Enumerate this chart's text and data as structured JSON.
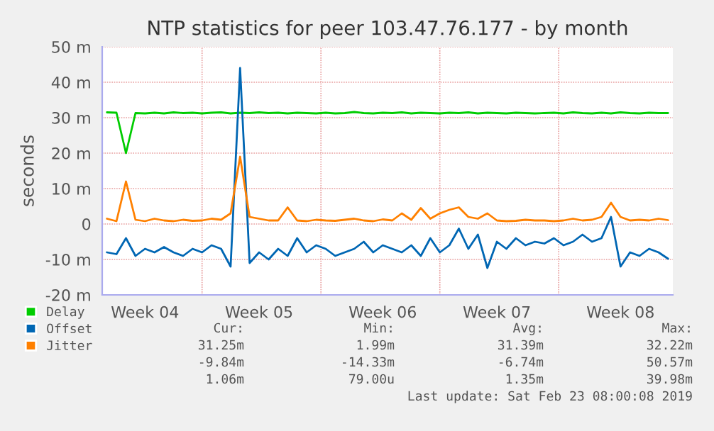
{
  "chart_data": {
    "type": "line",
    "title": "NTP statistics for peer 103.47.76.177 - by month",
    "ylabel": "seconds",
    "categories": [
      null,
      null,
      null,
      null,
      "Week 04",
      null,
      null,
      null,
      null,
      null,
      null,
      null,
      null,
      null,
      null,
      null,
      "Week 05",
      null,
      null,
      null,
      null,
      null,
      null,
      null,
      null,
      null,
      null,
      null,
      null,
      "Week 06",
      null,
      null,
      null,
      null,
      null,
      null,
      null,
      null,
      null,
      null,
      null,
      "Week 07",
      null,
      null,
      null,
      null,
      null,
      null,
      null,
      null,
      null,
      null,
      null,
      null,
      "Week 08",
      null,
      null,
      null,
      null,
      null
    ],
    "series": [
      {
        "name": "Delay",
        "color": "#00cc00",
        "values": [
          31.5,
          31.4,
          20,
          31.3,
          31.2,
          31.4,
          31.2,
          31.5,
          31.3,
          31.4,
          31.2,
          31.4,
          31.5,
          31.2,
          31.4,
          31.3,
          31.5,
          31.3,
          31.4,
          31.2,
          31.4,
          31.3,
          31.2,
          31.4,
          31.2,
          31.3,
          31.6,
          31.3,
          31.2,
          31.4,
          31.3,
          31.5,
          31.2,
          31.4,
          31.3,
          31.2,
          31.4,
          31.3,
          31.5,
          31.2,
          31.4,
          31.3,
          31.2,
          31.4,
          31.3,
          31.2,
          31.3,
          31.4,
          31.2,
          31.5,
          31.3,
          31.2,
          31.4,
          31.2,
          31.5,
          31.3,
          31.2,
          31.4,
          31.3,
          31.3
        ]
      },
      {
        "name": "Offset",
        "color": "#0066b3",
        "values": [
          -8,
          -8.5,
          -4,
          -9,
          -7,
          -8,
          -6.5,
          -8,
          -9,
          -7,
          -8,
          -6,
          -7,
          -12,
          44,
          -11,
          -8,
          -10,
          -7,
          -9,
          -4,
          -8,
          -6,
          -7,
          -9,
          -8,
          -7,
          -5,
          -8,
          -6,
          -7,
          -8,
          -6,
          -9,
          -4,
          -8,
          -6,
          -1.3,
          -7,
          -3,
          -12.4,
          -5,
          -7,
          -4,
          -6,
          -5,
          -5.5,
          -4,
          -6,
          -5,
          -3,
          -5,
          -4,
          2,
          -12,
          -8,
          -9,
          -7,
          -8,
          -9.8
        ]
      },
      {
        "name": "Jitter",
        "color": "#ff8000",
        "values": [
          1.5,
          0.8,
          12,
          1.2,
          0.8,
          1.5,
          1,
          0.8,
          1.2,
          0.9,
          1,
          1.5,
          1.2,
          3,
          19,
          2,
          1.5,
          1,
          1,
          4.7,
          1,
          0.8,
          1.2,
          1,
          0.9,
          1.2,
          1.5,
          1,
          0.8,
          1.3,
          1,
          3,
          1.2,
          4.5,
          1.5,
          3,
          4,
          4.7,
          2,
          1.5,
          3,
          1,
          0.8,
          0.9,
          1.2,
          1,
          1,
          0.8,
          1,
          1.5,
          1,
          1.2,
          2,
          6,
          2,
          1,
          1.2,
          1,
          1.5,
          1.1
        ]
      }
    ],
    "ylim": [
      -20,
      50
    ],
    "yticks": [
      {
        "value": -20,
        "label": "-20 m"
      },
      {
        "value": -10,
        "label": "-10 m"
      },
      0,
      {
        "value": 10,
        "label": "10 m"
      },
      {
        "value": 20,
        "label": "20 m"
      },
      {
        "value": 30,
        "label": "30 m"
      },
      {
        "value": 40,
        "label": "40 m"
      },
      {
        "value": 50,
        "label": "50 m"
      }
    ],
    "grid": true,
    "legend": "bottom left",
    "annotations": [
      "Cur:",
      "Min:",
      "Avg:",
      "Max:",
      "31.25m",
      "1.99m",
      "31.39m",
      "32.22m",
      "-9.84m",
      "-14.33m",
      "-6.74m",
      "50.57m",
      "1.06m",
      "79.00u",
      "1.35m",
      "39.98m",
      "Last update: Sat Feb 23 08:00:08 2019"
    ]
  }
}
